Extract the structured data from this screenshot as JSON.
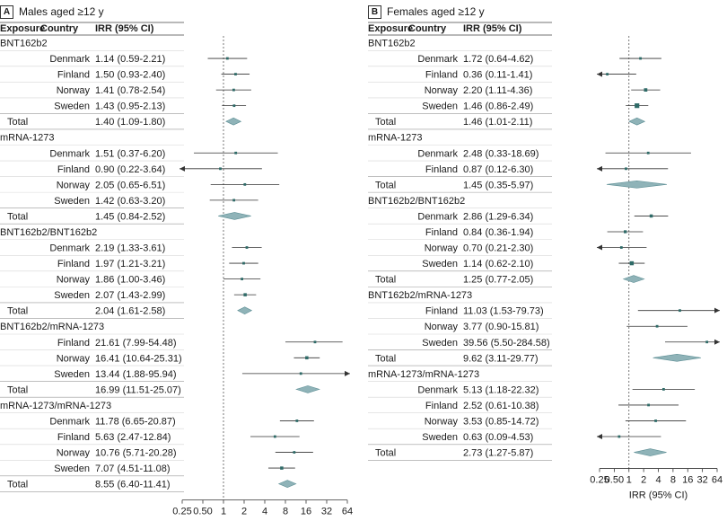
{
  "colors": {
    "marker": "#2f6b68",
    "diamond": "#8fb3b8",
    "diamond_stroke": "#5e8f95",
    "line": "#333333",
    "band": "#f4f6f7"
  },
  "chart_data": [
    {
      "type": "forest",
      "panel_letter": "A",
      "title": "Males aged ≥12 y",
      "xlabel": "IRR (95% CI)",
      "xscale": "log2",
      "xlim": [
        0.25,
        64
      ],
      "ticks": [
        {
          "v": 0.25,
          "label": "0.25"
        },
        {
          "v": 0.5,
          "label": "0.50"
        },
        {
          "v": 1,
          "label": "1"
        },
        {
          "v": 2,
          "label": "2"
        },
        {
          "v": 4,
          "label": "4"
        },
        {
          "v": 8,
          "label": "8"
        },
        {
          "v": 16,
          "label": "16"
        },
        {
          "v": 32,
          "label": "32"
        },
        {
          "v": 64,
          "label": "64"
        }
      ],
      "reference_line": 1,
      "headers": {
        "exposure": "Exposure",
        "country": "Country",
        "irr": "IRR (95% CI)"
      },
      "groups": [
        {
          "name": "BNT162b2",
          "rows": [
            {
              "country": "Denmark",
              "text": "1.14 (0.59-2.21)",
              "est": 1.14,
              "lo": 0.59,
              "hi": 2.21,
              "w": 1
            },
            {
              "country": "Finland",
              "text": "1.50 (0.93-2.40)",
              "est": 1.5,
              "lo": 0.93,
              "hi": 2.4,
              "w": 1
            },
            {
              "country": "Norway",
              "text": "1.41 (0.78-2.54)",
              "est": 1.41,
              "lo": 0.78,
              "hi": 2.54,
              "w": 1
            },
            {
              "country": "Sweden",
              "text": "1.43 (0.95-2.13)",
              "est": 1.43,
              "lo": 0.95,
              "hi": 2.13,
              "w": 1
            }
          ],
          "total": {
            "label": "Total",
            "text": "1.40 (1.09-1.80)",
            "est": 1.4,
            "lo": 1.09,
            "hi": 1.8
          }
        },
        {
          "name": "mRNA-1273",
          "rows": [
            {
              "country": "Denmark",
              "text": "1.51 (0.37-6.20)",
              "est": 1.51,
              "lo": 0.37,
              "hi": 6.2,
              "w": 1
            },
            {
              "country": "Finland",
              "text": "0.90 (0.22-3.64)",
              "est": 0.9,
              "lo": 0.22,
              "hi": 3.64,
              "w": 1
            },
            {
              "country": "Norway",
              "text": "2.05 (0.65-6.51)",
              "est": 2.05,
              "lo": 0.65,
              "hi": 6.51,
              "w": 1
            },
            {
              "country": "Sweden",
              "text": "1.42 (0.63-3.20)",
              "est": 1.42,
              "lo": 0.63,
              "hi": 3.2,
              "w": 1
            }
          ],
          "total": {
            "label": "Total",
            "text": "1.45 (0.84-2.52)",
            "est": 1.45,
            "lo": 0.84,
            "hi": 2.52
          }
        },
        {
          "name": "BNT162b2/BNT162b2",
          "rows": [
            {
              "country": "Denmark",
              "text": "2.19 (1.33-3.61)",
              "est": 2.19,
              "lo": 1.33,
              "hi": 3.61,
              "w": 1
            },
            {
              "country": "Finland",
              "text": "1.97 (1.21-3.21)",
              "est": 1.97,
              "lo": 1.21,
              "hi": 3.21,
              "w": 1
            },
            {
              "country": "Norway",
              "text": "1.86 (1.00-3.46)",
              "est": 1.86,
              "lo": 1.0,
              "hi": 3.46,
              "w": 1
            },
            {
              "country": "Sweden",
              "text": "2.07 (1.43-2.99)",
              "est": 2.07,
              "lo": 1.43,
              "hi": 2.99,
              "w": 1.3
            }
          ],
          "total": {
            "label": "Total",
            "text": "2.04 (1.61-2.58)",
            "est": 2.04,
            "lo": 1.61,
            "hi": 2.58
          }
        },
        {
          "name": "BNT162b2/mRNA-1273",
          "rows": [
            {
              "country": "Finland",
              "text": "21.61 (7.99-54.48)",
              "est": 21.61,
              "lo": 7.99,
              "hi": 54.48,
              "w": 1
            },
            {
              "country": "Norway",
              "text": "16.41 (10.64-25.31)",
              "est": 16.41,
              "lo": 10.64,
              "hi": 25.31,
              "w": 1.3
            },
            {
              "country": "Sweden",
              "text": "13.44 (1.88-95.94)",
              "est": 13.44,
              "lo": 1.88,
              "hi": 95.94,
              "w": 1
            }
          ],
          "total": {
            "label": "Total",
            "text": "16.99 (11.51-25.07)",
            "est": 16.99,
            "lo": 11.51,
            "hi": 25.07
          }
        },
        {
          "name": "mRNA-1273/mRNA-1273",
          "rows": [
            {
              "country": "Denmark",
              "text": "11.78 (6.65-20.87)",
              "est": 11.78,
              "lo": 6.65,
              "hi": 20.87,
              "w": 1
            },
            {
              "country": "Finland",
              "text": "5.63 (2.47-12.84)",
              "est": 5.63,
              "lo": 2.47,
              "hi": 12.84,
              "w": 1
            },
            {
              "country": "Norway",
              "text": "10.76 (5.71-20.28)",
              "est": 10.76,
              "lo": 5.71,
              "hi": 20.28,
              "w": 1
            },
            {
              "country": "Sweden",
              "text": "7.07 (4.51-11.08)",
              "est": 7.07,
              "lo": 4.51,
              "hi": 11.08,
              "w": 1.3
            }
          ],
          "total": {
            "label": "Total",
            "text": "8.55 (6.40-11.41)",
            "est": 8.55,
            "lo": 6.4,
            "hi": 11.41
          }
        }
      ]
    },
    {
      "type": "forest",
      "panel_letter": "B",
      "title": "Females aged ≥12 y",
      "xlabel": "IRR (95% CI)",
      "xscale": "log2",
      "xlim": [
        0.25,
        64
      ],
      "ticks": [
        {
          "v": 0.25,
          "label": "0.25"
        },
        {
          "v": 0.5,
          "label": "0.50"
        },
        {
          "v": 1,
          "label": "1"
        },
        {
          "v": 2,
          "label": "2"
        },
        {
          "v": 4,
          "label": "4"
        },
        {
          "v": 8,
          "label": "8"
        },
        {
          "v": 16,
          "label": "16"
        },
        {
          "v": 32,
          "label": "32"
        },
        {
          "v": 64,
          "label": "64"
        }
      ],
      "reference_line": 1,
      "headers": {
        "exposure": "Exposure",
        "country": "Country",
        "irr": "IRR (95% CI)"
      },
      "groups": [
        {
          "name": "BNT162b2",
          "rows": [
            {
              "country": "Denmark",
              "text": "1.72 (0.64-4.62)",
              "est": 1.72,
              "lo": 0.64,
              "hi": 4.62,
              "w": 1
            },
            {
              "country": "Finland",
              "text": "0.36 (0.11-1.41)",
              "est": 0.36,
              "lo": 0.11,
              "hi": 1.41,
              "w": 1
            },
            {
              "country": "Norway",
              "text": "2.20 (1.11-4.36)",
              "est": 2.2,
              "lo": 1.11,
              "hi": 4.36,
              "w": 1.4
            },
            {
              "country": "Sweden",
              "text": "1.46 (0.86-2.49)",
              "est": 1.46,
              "lo": 0.86,
              "hi": 2.49,
              "w": 2
            }
          ],
          "total": {
            "label": "Total",
            "text": "1.46 (1.01-2.11)",
            "est": 1.46,
            "lo": 1.01,
            "hi": 2.11
          }
        },
        {
          "name": "mRNA-1273",
          "rows": [
            {
              "country": "Denmark",
              "text": "2.48 (0.33-18.69)",
              "est": 2.48,
              "lo": 0.33,
              "hi": 18.69,
              "w": 1
            },
            {
              "country": "Finland",
              "text": "0.87 (0.12-6.30)",
              "est": 0.87,
              "lo": 0.12,
              "hi": 6.3,
              "w": 1
            }
          ],
          "total": {
            "label": "Total",
            "text": "1.45 (0.35-5.97)",
            "est": 1.45,
            "lo": 0.35,
            "hi": 5.97
          }
        },
        {
          "name": "BNT162b2/BNT162b2",
          "rows": [
            {
              "country": "Denmark",
              "text": "2.86 (1.29-6.34)",
              "est": 2.86,
              "lo": 1.29,
              "hi": 6.34,
              "w": 1.3
            },
            {
              "country": "Finland",
              "text": "0.84 (0.36-1.94)",
              "est": 0.84,
              "lo": 0.36,
              "hi": 1.94,
              "w": 1.2
            },
            {
              "country": "Norway",
              "text": "0.70 (0.21-2.30)",
              "est": 0.7,
              "lo": 0.21,
              "hi": 2.3,
              "w": 1
            },
            {
              "country": "Sweden",
              "text": "1.14 (0.62-2.10)",
              "est": 1.14,
              "lo": 0.62,
              "hi": 2.1,
              "w": 1.7
            }
          ],
          "total": {
            "label": "Total",
            "text": "1.25 (0.77-2.05)",
            "est": 1.25,
            "lo": 0.77,
            "hi": 2.05
          }
        },
        {
          "name": "BNT162b2/mRNA-1273",
          "rows": [
            {
              "country": "Finland",
              "text": "11.03 (1.53-79.73)",
              "est": 11.03,
              "lo": 1.53,
              "hi": 79.73,
              "w": 1
            },
            {
              "country": "Norway",
              "text": "3.77 (0.90-15.81)",
              "est": 3.77,
              "lo": 0.9,
              "hi": 15.81,
              "w": 1
            },
            {
              "country": "Sweden",
              "text": "39.56 (5.50-284.58)",
              "est": 39.56,
              "lo": 5.5,
              "hi": 284.58,
              "w": 1
            }
          ],
          "total": {
            "label": "Total",
            "text": "9.62 (3.11-29.77)",
            "est": 9.62,
            "lo": 3.11,
            "hi": 29.77
          }
        },
        {
          "name": "mRNA-1273/mRNA-1273",
          "rows": [
            {
              "country": "Denmark",
              "text": "5.13 (1.18-22.32)",
              "est": 5.13,
              "lo": 1.18,
              "hi": 22.32,
              "w": 1
            },
            {
              "country": "Finland",
              "text": "2.52 (0.61-10.38)",
              "est": 2.52,
              "lo": 0.61,
              "hi": 10.38,
              "w": 1
            },
            {
              "country": "Norway",
              "text": "3.53 (0.85-14.72)",
              "est": 3.53,
              "lo": 0.85,
              "hi": 14.72,
              "w": 1
            },
            {
              "country": "Sweden",
              "text": "0.63 (0.09-4.53)",
              "est": 0.63,
              "lo": 0.09,
              "hi": 4.53,
              "w": 1
            }
          ],
          "total": {
            "label": "Total",
            "text": "2.73 (1.27-5.87)",
            "est": 2.73,
            "lo": 1.27,
            "hi": 5.87
          }
        }
      ]
    }
  ]
}
